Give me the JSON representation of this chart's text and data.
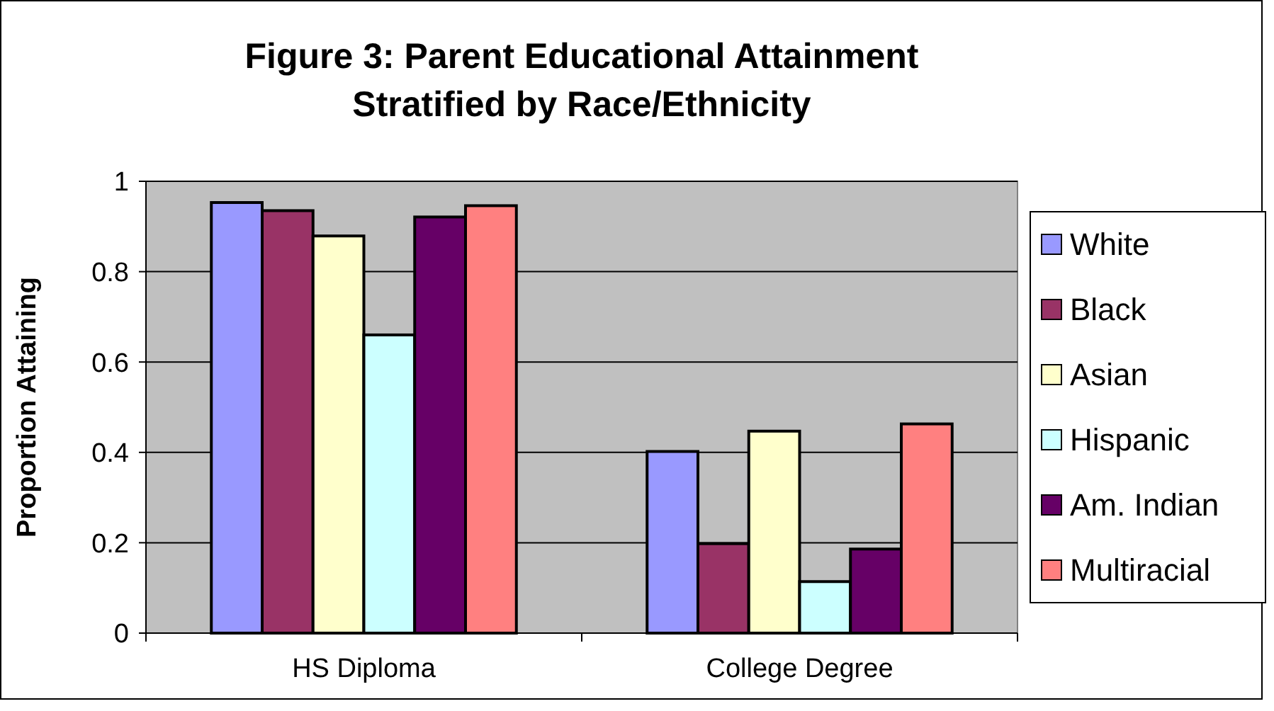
{
  "chart_data": {
    "type": "bar",
    "title": "Figure 3: Parent Educational Attainment\nStratified by Race/Ethnicity",
    "ylabel": "Proportion Attaining",
    "categories": [
      "HS Diploma",
      "College Degree"
    ],
    "series": [
      {
        "name": "White",
        "color": "#9999ff",
        "values": [
          0.953,
          0.402
        ]
      },
      {
        "name": "Black",
        "color": "#993366",
        "values": [
          0.935,
          0.198
        ]
      },
      {
        "name": "Asian",
        "color": "#ffffcc",
        "values": [
          0.879,
          0.447
        ]
      },
      {
        "name": "Hispanic",
        "color": "#ccffff",
        "values": [
          0.66,
          0.114
        ]
      },
      {
        "name": "Am. Indian",
        "color": "#660066",
        "values": [
          0.921,
          0.186
        ]
      },
      {
        "name": "Multiracial",
        "color": "#ff8080",
        "values": [
          0.946,
          0.463
        ]
      }
    ],
    "ylim": [
      0,
      1
    ],
    "yticks": [
      0,
      0.2,
      0.4,
      0.6,
      0.8,
      1
    ],
    "grid": "y",
    "legend": "right"
  }
}
